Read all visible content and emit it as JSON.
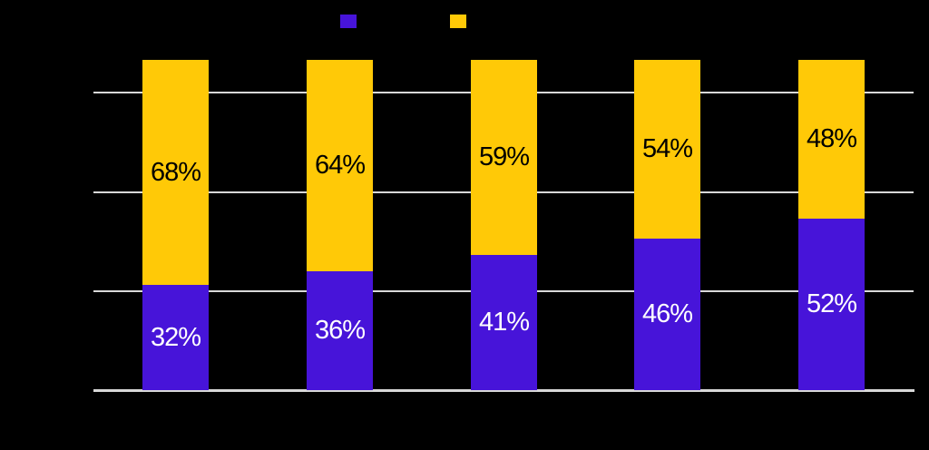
{
  "page": {
    "background_color": "#000000"
  },
  "colors": {
    "series_purple": "#4714D9",
    "series_yellow": "#FFC907",
    "gridline": "#D8D8D8",
    "axis_line": "#D8D8D8",
    "label_on_purple": "#FFFFFF",
    "label_on_yellow": "#000000"
  },
  "legend": {
    "position": "top-center",
    "swatches": [
      {
        "name": "purple-series-swatch",
        "color": "#4714D9"
      },
      {
        "name": "yellow-series-swatch",
        "color": "#FFC907"
      }
    ]
  },
  "chart_data": {
    "type": "bar",
    "stacked": true,
    "orientation": "vertical",
    "num_bars": 5,
    "series": [
      {
        "name": "bottom-purple-segments",
        "color": "#4714D9",
        "values_percent": [
          32,
          36,
          41,
          46,
          52
        ],
        "data_labels": [
          "32%",
          "36%",
          "41%",
          "46%",
          "52%"
        ],
        "label_color": "#FFFFFF"
      },
      {
        "name": "top-yellow-segments",
        "color": "#FFC907",
        "values_percent": [
          68,
          64,
          59,
          54,
          48
        ],
        "data_labels": [
          "68%",
          "64%",
          "59%",
          "54%",
          "48%"
        ],
        "label_color": "#000000"
      }
    ],
    "ylim": [
      0,
      100
    ],
    "gridline_values_percent": [
      30,
      60,
      90
    ],
    "grid": true,
    "legend_position": "top-center",
    "axis_tick_labels_visible": false,
    "category_labels_visible": false
  }
}
